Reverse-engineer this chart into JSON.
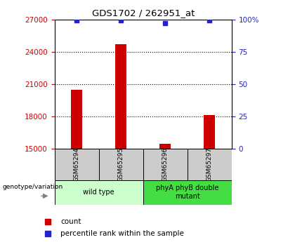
{
  "title": "GDS1702 / 262951_at",
  "samples": [
    "GSM65294",
    "GSM65295",
    "GSM65296",
    "GSM65297"
  ],
  "counts": [
    20500,
    24700,
    15450,
    18100
  ],
  "percentile_ranks": [
    99,
    99,
    97,
    99
  ],
  "ylim_left": [
    15000,
    27000
  ],
  "yticks_left": [
    15000,
    18000,
    21000,
    24000,
    27000
  ],
  "yticks_right": [
    0,
    25,
    50,
    75,
    100
  ],
  "ylim_right": [
    0,
    100
  ],
  "bar_color": "#cc0000",
  "dot_color": "#2222cc",
  "groups": [
    {
      "label": "wild type",
      "samples": [
        0,
        1
      ],
      "color": "#ccffcc"
    },
    {
      "label": "phyA phyB double\nmutant",
      "samples": [
        2,
        3
      ],
      "color": "#44dd44"
    }
  ],
  "sample_box_color": "#cccccc",
  "left_tick_color": "#cc0000",
  "right_tick_color": "#2222cc",
  "genotype_label": "genotype/variation",
  "legend_count": "count",
  "legend_pct": "percentile rank within the sample",
  "bar_width": 0.25,
  "dot_size": 25,
  "bg_color": "#ffffff"
}
